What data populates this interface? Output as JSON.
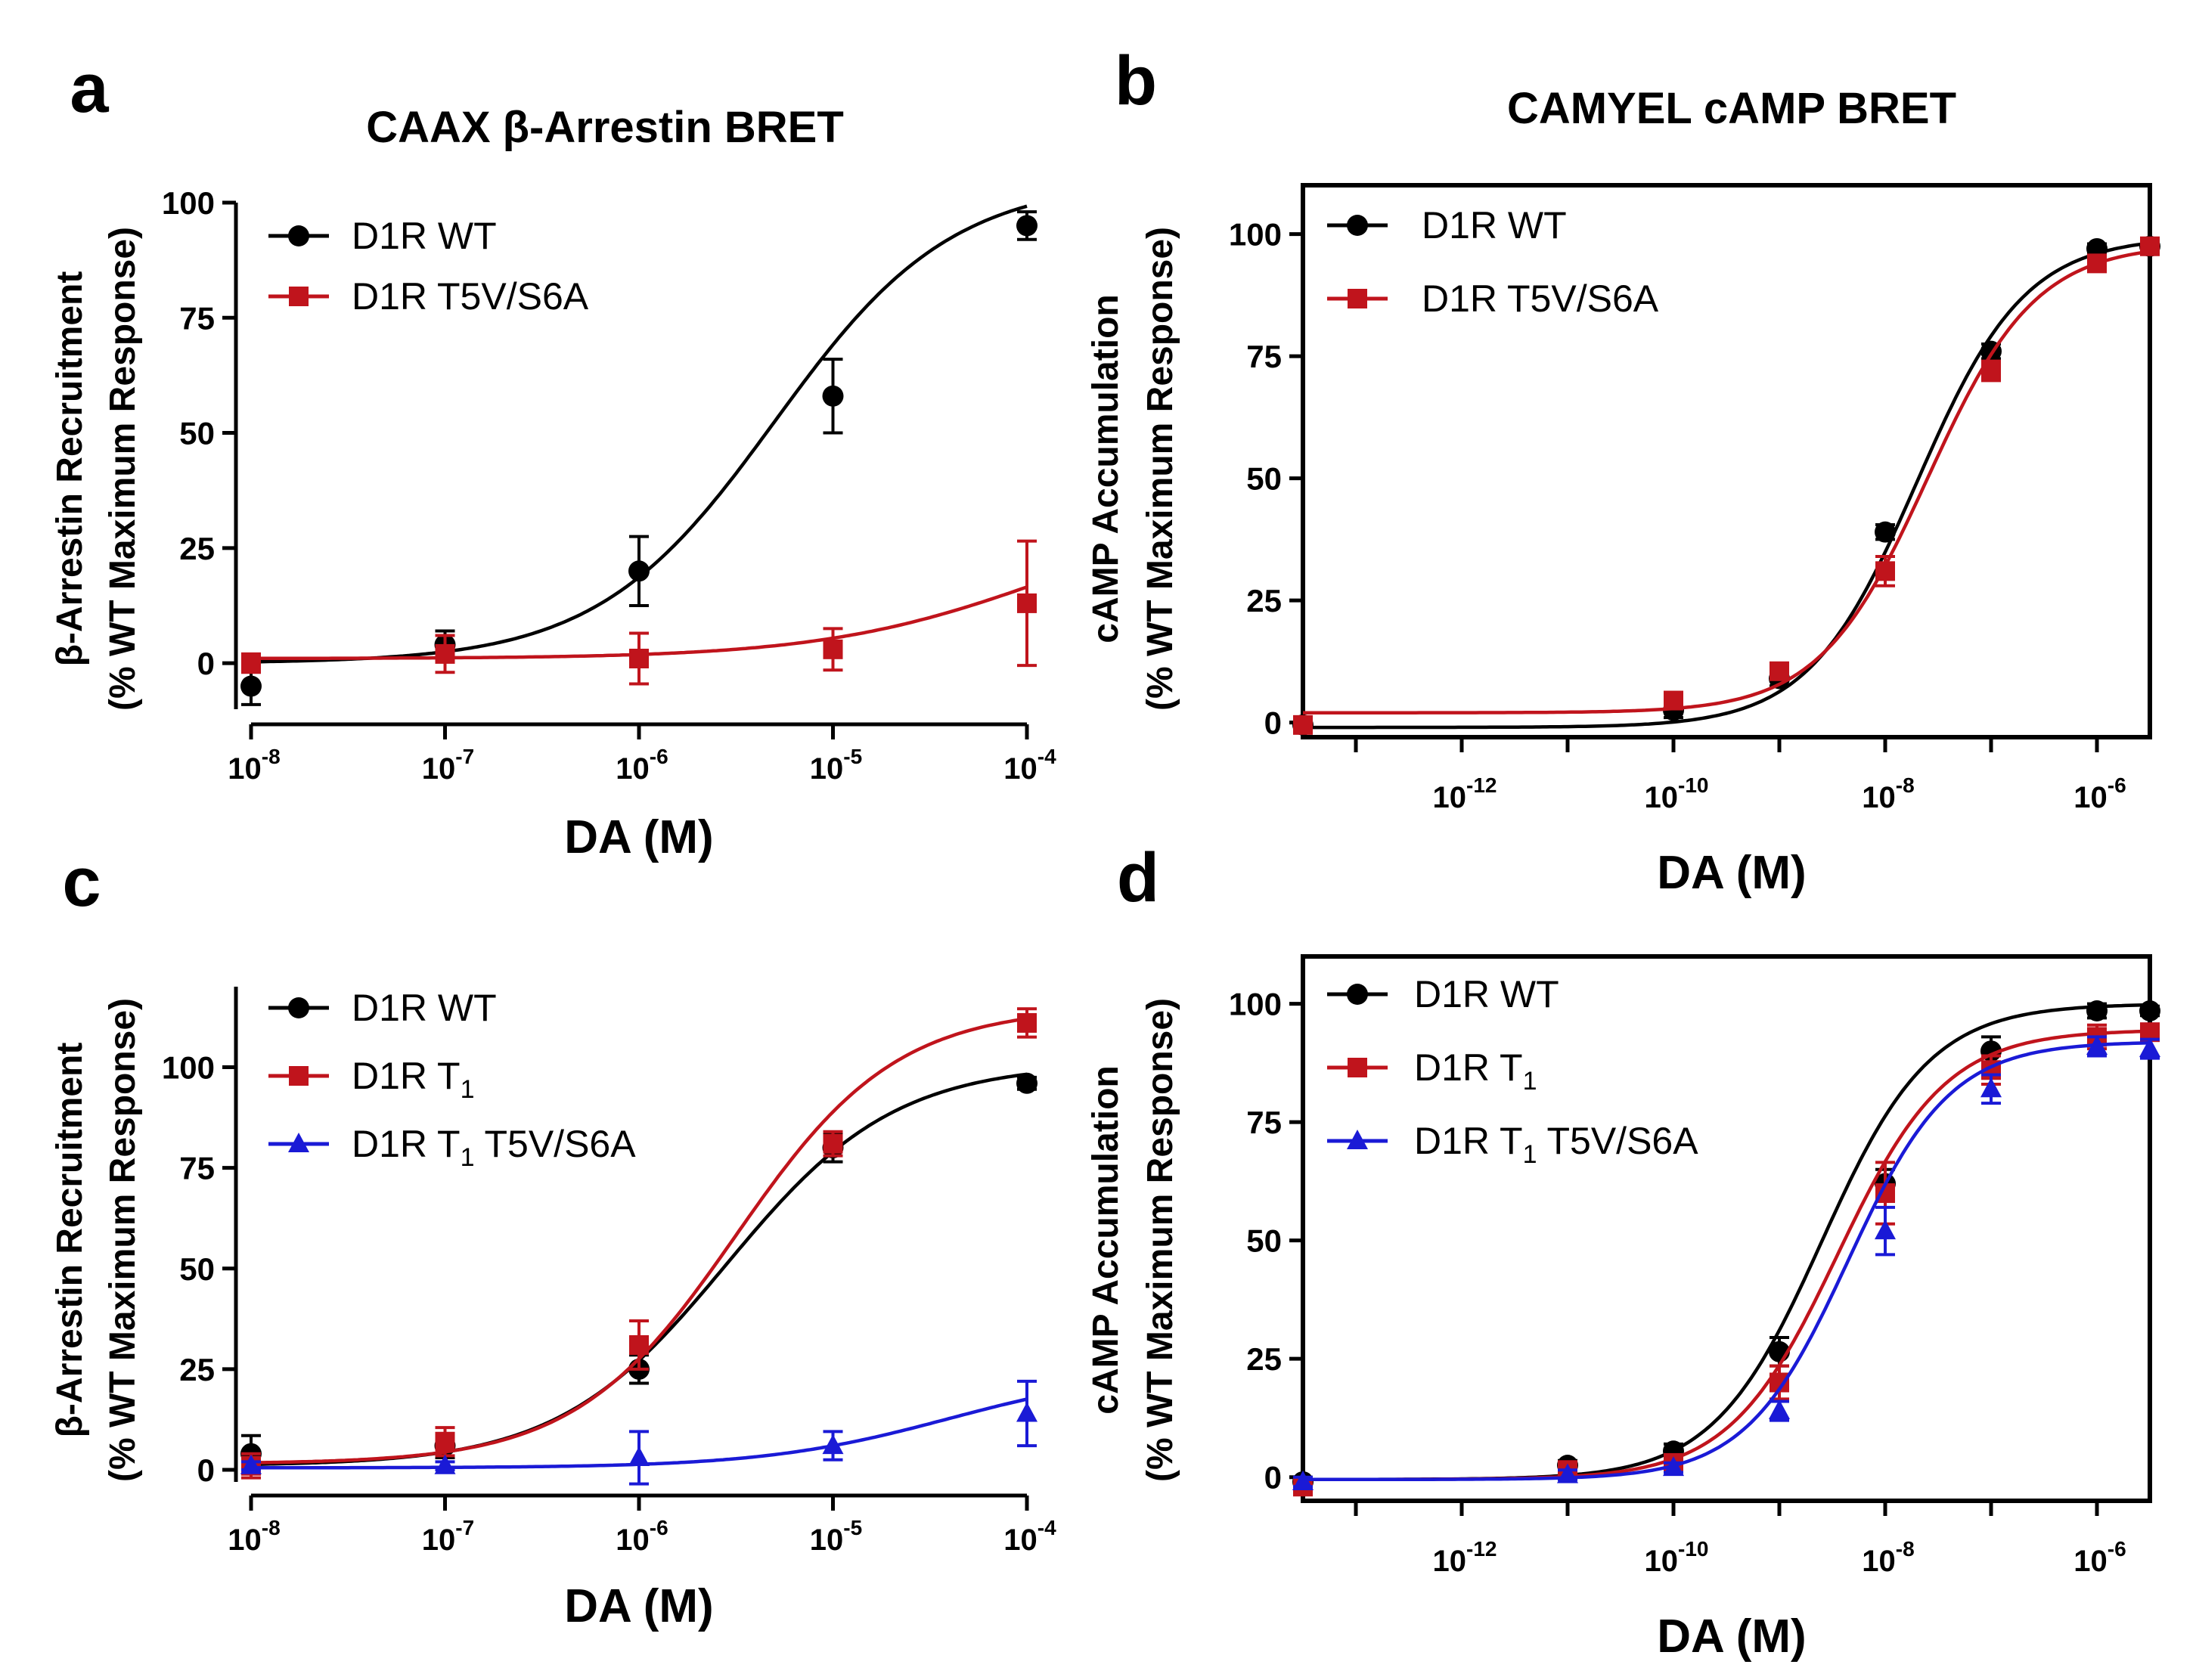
{
  "chart_data": [
    {
      "panel": "a",
      "type": "line",
      "title": "CAAX β-Arrestin BRET",
      "xlabel": "DA (M)",
      "ylabel": [
        "β-Arrestin Recruitment",
        "(% WT Maximum Response)"
      ],
      "x_scale": "log",
      "xlim": [
        -8,
        -4
      ],
      "ylim": [
        -10,
        100
      ],
      "frame": "open",
      "x_ticks": [
        {
          "base": "10",
          "exp": "-8",
          "v": -8
        },
        {
          "base": "10",
          "exp": "-7",
          "v": -7
        },
        {
          "base": "10",
          "exp": "-6",
          "v": -6
        },
        {
          "base": "10",
          "exp": "-5",
          "v": -5
        },
        {
          "base": "10",
          "exp": "-4",
          "v": -4
        }
      ],
      "y_ticks": [
        0,
        25,
        50,
        75,
        100
      ],
      "legend_position": "top-left",
      "series": [
        {
          "name": "D1R WT",
          "name_sub": "",
          "name_after": "",
          "color": "#000000",
          "marker": "circle",
          "x": [
            -8,
            -7,
            -6,
            -5,
            -4
          ],
          "y": [
            -5,
            4,
            20,
            58,
            95
          ],
          "err": [
            4,
            3,
            7.5,
            8,
            3
          ],
          "curve": {
            "bottom": 0,
            "top": 105,
            "logEC50": -5.3,
            "hill": 0.95
          }
        },
        {
          "name": "D1R T5V/S6A",
          "name_sub": "",
          "name_after": "",
          "color": "#c0141c",
          "marker": "square",
          "x": [
            -8,
            -7,
            -6,
            -5,
            -4
          ],
          "y": [
            0,
            2,
            1,
            3,
            13
          ],
          "err": [
            2,
            4,
            5.5,
            4.5,
            13.5
          ],
          "curve": {
            "bottom": 1,
            "top": 35,
            "logEC50": -3.9,
            "hill": 0.75
          }
        }
      ]
    },
    {
      "panel": "b",
      "type": "line",
      "title": "CAMYEL cAMP BRET",
      "xlabel": "DA (M)",
      "ylabel": [
        "cAMP Accumulation",
        "(% WT Maximum Response)"
      ],
      "x_scale": "log",
      "xlim": [
        -13.5,
        -5.5
      ],
      "ylim": [
        -3,
        110
      ],
      "frame": "box",
      "x_ticks": [
        {
          "base": "10",
          "exp": "-12",
          "v": -12
        },
        {
          "base": "10",
          "exp": "-10",
          "v": -10
        },
        {
          "base": "10",
          "exp": "-8",
          "v": -8
        },
        {
          "base": "10",
          "exp": "-6",
          "v": -6
        }
      ],
      "y_ticks": [
        0,
        25,
        50,
        75,
        100
      ],
      "legend_position": "top-left",
      "series": [
        {
          "name": "D1R WT",
          "name_sub": "",
          "name_after": "",
          "color": "#000000",
          "marker": "circle",
          "x": [
            -13.5,
            -10,
            -9,
            -8,
            -7,
            -6,
            -5.5
          ],
          "y": [
            -0.5,
            2.5,
            9,
            39,
            76,
            97,
            97.5
          ],
          "err": [
            1,
            1.5,
            1.5,
            1.5,
            1.5,
            1,
            1
          ],
          "curve": {
            "bottom": -1,
            "top": 99.5,
            "logEC50": -7.7,
            "hill": 0.85
          }
        },
        {
          "name": "D1R T5V/S6A",
          "name_sub": "",
          "name_after": "",
          "color": "#c0141c",
          "marker": "square",
          "x": [
            -13.5,
            -10,
            -9,
            -8,
            -7,
            -6,
            -5.5
          ],
          "y": [
            -0.5,
            4.5,
            10.5,
            31,
            72,
            94,
            97.5
          ],
          "err": [
            1,
            1.5,
            1.5,
            3,
            2,
            1.5,
            1.5
          ],
          "curve": {
            "bottom": 2,
            "top": 98,
            "logEC50": -7.6,
            "hill": 0.85
          }
        }
      ]
    },
    {
      "panel": "c",
      "type": "line",
      "title": "",
      "xlabel": "DA (M)",
      "ylabel": [
        "β-Arrestin Recruitment",
        "(% WT Maximum Response)"
      ],
      "x_scale": "log",
      "xlim": [
        -8,
        -4
      ],
      "ylim": [
        -3,
        120
      ],
      "frame": "open",
      "x_ticks": [
        {
          "base": "10",
          "exp": "-8",
          "v": -8
        },
        {
          "base": "10",
          "exp": "-7",
          "v": -7
        },
        {
          "base": "10",
          "exp": "-6",
          "v": -6
        },
        {
          "base": "10",
          "exp": "-5",
          "v": -5
        },
        {
          "base": "10",
          "exp": "-4",
          "v": -4
        }
      ],
      "y_ticks": [
        0,
        25,
        50,
        75,
        100
      ],
      "legend_position": "top-left",
      "series": [
        {
          "name": "D1R WT",
          "name_sub": "",
          "name_after": "",
          "color": "#000000",
          "marker": "circle",
          "x": [
            -8,
            -7,
            -6,
            -5,
            -4
          ],
          "y": [
            4,
            6,
            25,
            80,
            96
          ],
          "err": [
            4.5,
            3,
            3.5,
            3.5,
            1.5
          ],
          "curve": {
            "bottom": 1,
            "top": 101,
            "logEC50": -5.55,
            "hill": 1.0
          }
        },
        {
          "name": "D1R T",
          "name_sub": "1",
          "name_after": "",
          "color": "#c0141c",
          "marker": "square",
          "x": [
            -8,
            -7,
            -6,
            -5,
            -4
          ],
          "y": [
            1,
            7,
            31,
            81,
            111
          ],
          "err": [
            3,
            3.5,
            6,
            3,
            3.5
          ],
          "curve": {
            "bottom": 1.5,
            "top": 115,
            "logEC50": -5.5,
            "hill": 1.05
          }
        },
        {
          "name": "D1R T",
          "name_sub": "1",
          "name_after": " T5V/S6A",
          "color": "#1a1ad6",
          "marker": "triangle",
          "x": [
            -8,
            -7,
            -6,
            -5,
            -4
          ],
          "y": [
            1,
            1,
            3,
            6,
            14
          ],
          "err": [
            1,
            1,
            6.5,
            3.5,
            8
          ],
          "curve": {
            "bottom": 0.5,
            "top": 25,
            "logEC50": -4.4,
            "hill": 0.9
          }
        }
      ]
    },
    {
      "panel": "d",
      "type": "line",
      "title": "",
      "xlabel": "DA (M)",
      "ylabel": [
        "cAMP Accumulation",
        "(% WT Maximum Response)"
      ],
      "x_scale": "log",
      "xlim": [
        -13.5,
        -5.5
      ],
      "ylim": [
        -5,
        110
      ],
      "frame": "box",
      "x_ticks": [
        {
          "base": "10",
          "exp": "-12",
          "v": -12
        },
        {
          "base": "10",
          "exp": "-10",
          "v": -10
        },
        {
          "base": "10",
          "exp": "-8",
          "v": -8
        },
        {
          "base": "10",
          "exp": "-6",
          "v": -6
        }
      ],
      "y_ticks": [
        0,
        25,
        50,
        75,
        100
      ],
      "legend_position": "top-left",
      "series": [
        {
          "name": "D1R WT",
          "name_sub": "",
          "name_after": "",
          "color": "#000000",
          "marker": "circle",
          "x": [
            -13.5,
            -11,
            -10,
            -9,
            -8,
            -7,
            -6,
            -5.5
          ],
          "y": [
            -1,
            2.5,
            5.5,
            26.5,
            62,
            90,
            98.5,
            98.5
          ],
          "err": [
            1,
            1,
            1.5,
            3,
            3,
            3,
            1.5,
            1
          ],
          "curve": {
            "bottom": -0.5,
            "top": 100,
            "logEC50": -8.6,
            "hill": 0.85
          }
        },
        {
          "name": "D1R T",
          "name_sub": "1",
          "name_after": "",
          "color": "#c0141c",
          "marker": "square",
          "x": [
            -13.5,
            -11,
            -10,
            -9,
            -8,
            -7,
            -6,
            -5.5
          ],
          "y": [
            -2,
            1.5,
            3,
            20,
            60,
            86,
            93,
            94
          ],
          "err": [
            1,
            1,
            1.5,
            3.5,
            6.5,
            3,
            2.5,
            1.5
          ],
          "curve": {
            "bottom": -0.5,
            "top": 94.5,
            "logEC50": -8.45,
            "hill": 0.85
          }
        },
        {
          "name": "D1R T",
          "name_sub": "1",
          "name_after": " T5V/S6A",
          "color": "#1a1ad6",
          "marker": "triangle",
          "x": [
            -13.5,
            -11,
            -10,
            -9,
            -8,
            -7,
            -6,
            -5.5
          ],
          "y": [
            -1,
            0.5,
            2,
            14,
            52,
            82,
            91,
            90.5
          ],
          "err": [
            1,
            1,
            1,
            2,
            5,
            3,
            2,
            2
          ],
          "curve": {
            "bottom": -0.5,
            "top": 92,
            "logEC50": -8.35,
            "hill": 0.9
          }
        }
      ]
    }
  ]
}
